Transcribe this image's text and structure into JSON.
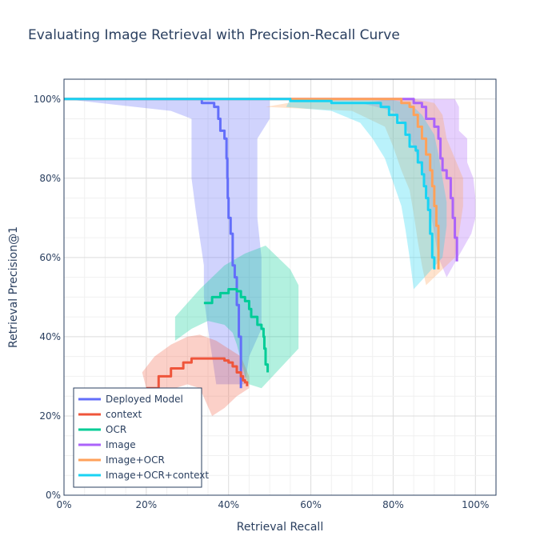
{
  "chart_data": {
    "type": "line",
    "title": "Evaluating Image Retrieval with Precision-Recall Curve",
    "xlabel": "Retrieval Recall",
    "ylabel": "Retrieval Precision@1",
    "xlim": [
      0,
      1.05
    ],
    "ylim": [
      0,
      1.05
    ],
    "x_ticks": [
      0,
      0.2,
      0.4,
      0.6,
      0.8,
      1.0
    ],
    "x_tick_labels": [
      "0%",
      "20%",
      "40%",
      "60%",
      "80%",
      "100%"
    ],
    "y_ticks": [
      0,
      0.2,
      0.4,
      0.6,
      0.8,
      1.0
    ],
    "y_tick_labels": [
      "0%",
      "20%",
      "40%",
      "60%",
      "80%",
      "100%"
    ],
    "grid": true,
    "legend_position": "bottom-left",
    "series": [
      {
        "name": "Deployed Model",
        "color": "#636efa",
        "band_color": "rgba(99,110,250,0.30)",
        "points": [
          [
            0.0,
            1.0
          ],
          [
            0.33,
            1.0
          ],
          [
            0.335,
            0.99
          ],
          [
            0.36,
            0.99
          ],
          [
            0.365,
            0.98
          ],
          [
            0.37,
            0.98
          ],
          [
            0.375,
            0.95
          ],
          [
            0.38,
            0.92
          ],
          [
            0.39,
            0.9
          ],
          [
            0.395,
            0.85
          ],
          [
            0.397,
            0.8
          ],
          [
            0.398,
            0.75
          ],
          [
            0.4,
            0.7
          ],
          [
            0.405,
            0.66
          ],
          [
            0.41,
            0.63
          ],
          [
            0.41,
            0.58
          ],
          [
            0.415,
            0.55
          ],
          [
            0.42,
            0.52
          ],
          [
            0.42,
            0.48
          ],
          [
            0.425,
            0.45
          ],
          [
            0.425,
            0.4
          ],
          [
            0.43,
            0.35
          ],
          [
            0.43,
            0.3
          ],
          [
            0.43,
            0.27
          ]
        ],
        "band_upper": [
          [
            0.0,
            1.0
          ],
          [
            0.5,
            1.0
          ],
          [
            0.5,
            0.95
          ],
          [
            0.47,
            0.9
          ],
          [
            0.47,
            0.8
          ],
          [
            0.47,
            0.7
          ],
          [
            0.48,
            0.6
          ],
          [
            0.48,
            0.5
          ],
          [
            0.48,
            0.42
          ],
          [
            0.45,
            0.35
          ],
          [
            0.44,
            0.28
          ]
        ],
        "band_lower": [
          [
            0.26,
            0.97
          ],
          [
            0.31,
            0.95
          ],
          [
            0.31,
            0.88
          ],
          [
            0.31,
            0.8
          ],
          [
            0.32,
            0.72
          ],
          [
            0.33,
            0.65
          ],
          [
            0.34,
            0.58
          ],
          [
            0.34,
            0.5
          ],
          [
            0.35,
            0.42
          ],
          [
            0.36,
            0.35
          ],
          [
            0.37,
            0.28
          ]
        ]
      },
      {
        "name": "context",
        "color": "#ef553b",
        "band_color": "rgba(239,85,59,0.28)",
        "points": [
          [
            0.2,
            0.27
          ],
          [
            0.23,
            0.3
          ],
          [
            0.26,
            0.32
          ],
          [
            0.29,
            0.335
          ],
          [
            0.31,
            0.345
          ],
          [
            0.33,
            0.345
          ],
          [
            0.35,
            0.345
          ],
          [
            0.37,
            0.345
          ],
          [
            0.39,
            0.34
          ],
          [
            0.4,
            0.335
          ],
          [
            0.41,
            0.325
          ],
          [
            0.42,
            0.31
          ],
          [
            0.43,
            0.3
          ],
          [
            0.435,
            0.29
          ],
          [
            0.44,
            0.285
          ],
          [
            0.445,
            0.275
          ]
        ],
        "band_upper": [
          [
            0.19,
            0.31
          ],
          [
            0.22,
            0.35
          ],
          [
            0.26,
            0.38
          ],
          [
            0.3,
            0.4
          ],
          [
            0.33,
            0.405
          ],
          [
            0.37,
            0.39
          ],
          [
            0.4,
            0.37
          ],
          [
            0.43,
            0.35
          ],
          [
            0.45,
            0.3
          ]
        ],
        "band_lower": [
          [
            0.21,
            0.23
          ],
          [
            0.24,
            0.25
          ],
          [
            0.27,
            0.27
          ],
          [
            0.3,
            0.28
          ],
          [
            0.33,
            0.27
          ],
          [
            0.36,
            0.2
          ],
          [
            0.39,
            0.22
          ],
          [
            0.42,
            0.25
          ],
          [
            0.45,
            0.27
          ]
        ]
      },
      {
        "name": "OCR",
        "color": "#00cc96",
        "band_color": "rgba(0,204,150,0.30)",
        "points": [
          [
            0.34,
            0.485
          ],
          [
            0.36,
            0.5
          ],
          [
            0.38,
            0.51
          ],
          [
            0.4,
            0.52
          ],
          [
            0.42,
            0.515
          ],
          [
            0.43,
            0.5
          ],
          [
            0.44,
            0.49
          ],
          [
            0.45,
            0.47
          ],
          [
            0.455,
            0.45
          ],
          [
            0.46,
            0.45
          ],
          [
            0.47,
            0.43
          ],
          [
            0.48,
            0.42
          ],
          [
            0.485,
            0.4
          ],
          [
            0.487,
            0.37
          ],
          [
            0.49,
            0.33
          ],
          [
            0.495,
            0.31
          ]
        ],
        "band_upper": [
          [
            0.27,
            0.45
          ],
          [
            0.33,
            0.52
          ],
          [
            0.39,
            0.58
          ],
          [
            0.44,
            0.61
          ],
          [
            0.49,
            0.63
          ],
          [
            0.52,
            0.6
          ],
          [
            0.55,
            0.57
          ],
          [
            0.57,
            0.53
          ],
          [
            0.57,
            0.45
          ],
          [
            0.57,
            0.37
          ]
        ],
        "band_lower": [
          [
            0.27,
            0.39
          ],
          [
            0.31,
            0.42
          ],
          [
            0.35,
            0.44
          ],
          [
            0.39,
            0.43
          ],
          [
            0.41,
            0.41
          ],
          [
            0.42,
            0.38
          ],
          [
            0.43,
            0.34
          ],
          [
            0.44,
            0.3
          ],
          [
            0.45,
            0.28
          ],
          [
            0.48,
            0.27
          ]
        ]
      },
      {
        "name": "Image",
        "color": "#ab63fa",
        "band_color": "rgba(171,99,250,0.30)",
        "points": [
          [
            0.0,
            1.0
          ],
          [
            0.8,
            1.0
          ],
          [
            0.85,
            0.99
          ],
          [
            0.87,
            0.98
          ],
          [
            0.88,
            0.95
          ],
          [
            0.9,
            0.93
          ],
          [
            0.91,
            0.9
          ],
          [
            0.915,
            0.85
          ],
          [
            0.92,
            0.82
          ],
          [
            0.93,
            0.8
          ],
          [
            0.94,
            0.75
          ],
          [
            0.945,
            0.7
          ],
          [
            0.95,
            0.65
          ],
          [
            0.955,
            0.62
          ],
          [
            0.955,
            0.59
          ]
        ],
        "band_upper": [
          [
            0.8,
            1.0
          ],
          [
            0.95,
            1.0
          ],
          [
            0.96,
            0.98
          ],
          [
            0.96,
            0.92
          ],
          [
            0.98,
            0.9
          ],
          [
            0.98,
            0.84
          ],
          [
            0.995,
            0.8
          ],
          [
            1.0,
            0.75
          ],
          [
            1.0,
            0.7
          ],
          [
            0.99,
            0.66
          ]
        ],
        "band_lower": [
          [
            0.72,
            0.99
          ],
          [
            0.8,
            0.97
          ],
          [
            0.83,
            0.93
          ],
          [
            0.85,
            0.88
          ],
          [
            0.87,
            0.82
          ],
          [
            0.88,
            0.78
          ],
          [
            0.89,
            0.72
          ],
          [
            0.9,
            0.66
          ],
          [
            0.91,
            0.6
          ],
          [
            0.93,
            0.55
          ]
        ]
      },
      {
        "name": "Image+OCR",
        "color": "#ffa15a",
        "band_color": "rgba(255,161,90,0.30)",
        "points": [
          [
            0.0,
            1.0
          ],
          [
            0.78,
            1.0
          ],
          [
            0.82,
            0.99
          ],
          [
            0.84,
            0.98
          ],
          [
            0.85,
            0.96
          ],
          [
            0.86,
            0.93
          ],
          [
            0.87,
            0.9
          ],
          [
            0.88,
            0.86
          ],
          [
            0.89,
            0.82
          ],
          [
            0.895,
            0.78
          ],
          [
            0.9,
            0.73
          ],
          [
            0.905,
            0.68
          ],
          [
            0.91,
            0.62
          ],
          [
            0.91,
            0.57
          ]
        ],
        "band_upper": [
          [
            0.6,
            1.0
          ],
          [
            0.85,
            1.0
          ],
          [
            0.9,
            0.99
          ],
          [
            0.92,
            0.96
          ],
          [
            0.93,
            0.9
          ],
          [
            0.95,
            0.85
          ],
          [
            0.97,
            0.8
          ],
          [
            0.97,
            0.73
          ],
          [
            0.96,
            0.66
          ],
          [
            0.95,
            0.6
          ]
        ],
        "band_lower": [
          [
            0.49,
            0.98
          ],
          [
            0.7,
            0.97
          ],
          [
            0.78,
            0.93
          ],
          [
            0.8,
            0.88
          ],
          [
            0.82,
            0.82
          ],
          [
            0.84,
            0.77
          ],
          [
            0.85,
            0.71
          ],
          [
            0.86,
            0.64
          ],
          [
            0.87,
            0.58
          ],
          [
            0.88,
            0.53
          ]
        ]
      },
      {
        "name": "Image+OCR+context",
        "color": "#19d3f3",
        "band_color": "rgba(25,211,243,0.30)",
        "points": [
          [
            0.0,
            1.0
          ],
          [
            0.4,
            1.0
          ],
          [
            0.55,
            0.995
          ],
          [
            0.65,
            0.99
          ],
          [
            0.72,
            0.99
          ],
          [
            0.77,
            0.98
          ],
          [
            0.79,
            0.96
          ],
          [
            0.81,
            0.94
          ],
          [
            0.83,
            0.91
          ],
          [
            0.84,
            0.88
          ],
          [
            0.855,
            0.87
          ],
          [
            0.86,
            0.84
          ],
          [
            0.87,
            0.81
          ],
          [
            0.875,
            0.78
          ],
          [
            0.88,
            0.75
          ],
          [
            0.885,
            0.72
          ],
          [
            0.89,
            0.66
          ],
          [
            0.895,
            0.6
          ],
          [
            0.9,
            0.57
          ]
        ],
        "band_upper": [
          [
            0.55,
            1.0
          ],
          [
            0.78,
            1.0
          ],
          [
            0.84,
            0.99
          ],
          [
            0.87,
            0.96
          ],
          [
            0.9,
            0.91
          ],
          [
            0.91,
            0.86
          ],
          [
            0.92,
            0.8
          ],
          [
            0.93,
            0.74
          ],
          [
            0.93,
            0.68
          ],
          [
            0.92,
            0.6
          ]
        ],
        "band_lower": [
          [
            0.54,
            0.98
          ],
          [
            0.65,
            0.97
          ],
          [
            0.72,
            0.94
          ],
          [
            0.75,
            0.9
          ],
          [
            0.78,
            0.85
          ],
          [
            0.8,
            0.79
          ],
          [
            0.82,
            0.73
          ],
          [
            0.83,
            0.67
          ],
          [
            0.84,
            0.6
          ],
          [
            0.85,
            0.52
          ]
        ]
      }
    ]
  }
}
